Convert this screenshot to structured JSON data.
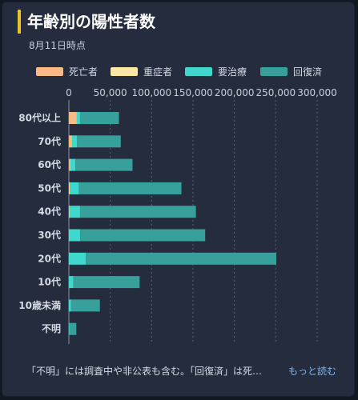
{
  "header": {
    "title": "年齢別の陽性者数",
    "as_of": "8月11日時点"
  },
  "footer": {
    "note": "「不明」には調査中や非公表も含む。「回復済」は死…",
    "more_link": "もっと読む"
  },
  "colors": {
    "deceased": "#f8b984",
    "severe": "#ffe7a3",
    "treatment": "#3ed9cc",
    "recovered": "#37a09b"
  },
  "chart_data": {
    "type": "bar",
    "orientation": "horizontal",
    "stacked": true,
    "title": "年齢別の陽性者数",
    "categories": [
      "80代以上",
      "70代",
      "60代",
      "50代",
      "40代",
      "30代",
      "20代",
      "10代",
      "10歳未満",
      "不明"
    ],
    "series": [
      {
        "name": "死亡者",
        "values": [
          9000,
          3000,
          800,
          500,
          200,
          100,
          0,
          0,
          0,
          0
        ]
      },
      {
        "name": "重症者",
        "values": [
          500,
          700,
          600,
          500,
          300,
          100,
          100,
          0,
          0,
          0
        ]
      },
      {
        "name": "要治療",
        "values": [
          4000,
          6000,
          6500,
          11000,
          13000,
          13500,
          20500,
          5500,
          2500,
          500
        ]
      },
      {
        "name": "回復済",
        "values": [
          47000,
          53000,
          69000,
          124000,
          140000,
          151000,
          230000,
          80000,
          35000,
          8500
        ]
      }
    ],
    "xlim": [
      0,
      300000
    ],
    "xticks": [
      0,
      50000,
      100000,
      150000,
      200000,
      250000,
      300000
    ],
    "xtick_labels": [
      "0",
      "50,000",
      "100,000",
      "150,000",
      "200,000",
      "250,000",
      "300,000"
    ],
    "grid": true,
    "legend_position": "top"
  }
}
